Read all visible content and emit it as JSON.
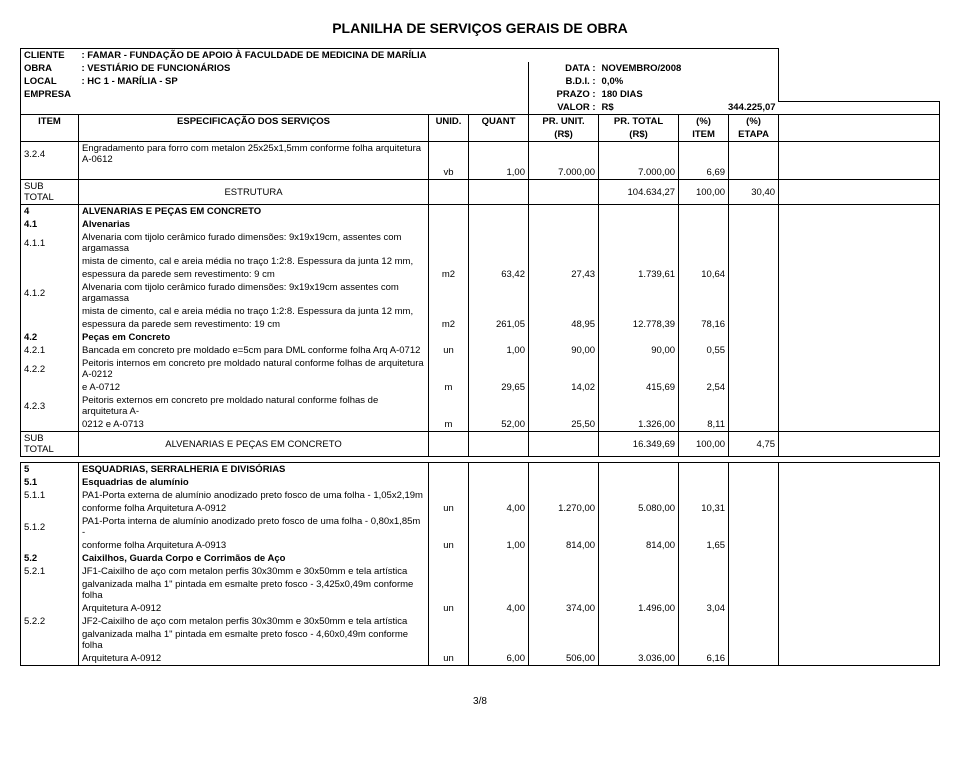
{
  "title": "PLANILHA DE SERVIÇOS GERAIS DE OBRA",
  "header": {
    "cliente_label": "CLIENTE",
    "cliente_val": ": FAMAR - FUNDAÇÃO DE APOIO À FACULDADE DE MEDICINA DE MARÍLIA",
    "obra_label": "OBRA",
    "obra_val": ": VESTIÁRIO DE FUNCIONÁRIOS",
    "data_label": "DATA :",
    "data_val": "NOVEMBRO/2008",
    "local_label": "LOCAL",
    "local_val": ": HC 1 - MARÍLIA - SP",
    "bdi_label": "B.D.I. :",
    "bdi_val": "0,0%",
    "empresa_label": "EMPRESA",
    "prazo_label": "PRAZO :",
    "prazo_val": "180 DIAS",
    "valor_label": "VALOR :",
    "valor_cur": "R$",
    "valor_val": "344.225,07"
  },
  "cols": {
    "item": "ITEM",
    "spec": "ESPECIFICAÇÃO DOS SERVIÇOS",
    "unid": "UNID.",
    "quant": "QUANT",
    "prunit": "PR. UNIT.",
    "prtot": "PR. TOTAL",
    "pct": "(%)",
    "rs": "(R$)",
    "itemcol": "ITEM",
    "etapa": "ETAPA"
  },
  "rows": [
    {
      "item": "3.2.4",
      "spec": "Engradamento para forro com metalon 25x25x1,5mm conforme folha arquitetura A-0612"
    },
    {
      "spec": "",
      "unid": "vb",
      "quant": "1,00",
      "prunit": "7.000,00",
      "prtot": "7.000,00",
      "pct1": "6,69"
    },
    {
      "sub": true,
      "item": "SUB TOTAL",
      "spec": "ESTRUTURA",
      "prtot": "104.634,27",
      "pct1": "100,00",
      "pct2": "30,40"
    },
    {
      "item": "4",
      "bold": true,
      "spec": "ALVENARIAS E PEÇAS EM CONCRETO"
    },
    {
      "item": "4.1",
      "bold": true,
      "spec": "Alvenarias"
    },
    {
      "item": "4.1.1",
      "spec": "Alvenaria com tijolo cerâmico furado dimensões: 9x19x19cm, assentes com argamassa"
    },
    {
      "spec": "mista de cimento, cal e areia média no traço 1:2:8. Espessura da junta 12 mm,"
    },
    {
      "spec": "espessura da parede sem revestimento: 9 cm",
      "unid": "m2",
      "quant": "63,42",
      "prunit": "27,43",
      "prtot": "1.739,61",
      "pct1": "10,64"
    },
    {
      "item": "4.1.2",
      "spec": "Alvenaria com tijolo cerâmico furado dimensões: 9x19x19cm assentes com argamassa"
    },
    {
      "spec": "mista de cimento, cal e areia média no traço 1:2:8. Espessura da junta 12 mm,"
    },
    {
      "spec": "espessura da parede sem revestimento: 19 cm",
      "unid": "m2",
      "quant": "261,05",
      "prunit": "48,95",
      "prtot": "12.778,39",
      "pct1": "78,16"
    },
    {
      "item": "4.2",
      "bold": true,
      "spec": "Peças em Concreto"
    },
    {
      "item": "4.2.1",
      "spec": "Bancada em concreto pre moldado e=5cm para DML conforme folha Arq A-0712",
      "unid": "un",
      "quant": "1,00",
      "prunit": "90,00",
      "prtot": "90,00",
      "pct1": "0,55"
    },
    {
      "item": "4.2.2",
      "spec": "Peitoris internos em concreto pre moldado natural conforme folhas de arquitetura A-0212"
    },
    {
      "spec": "e A-0712",
      "unid": "m",
      "quant": "29,65",
      "prunit": "14,02",
      "prtot": "415,69",
      "pct1": "2,54"
    },
    {
      "item": "4.2.3",
      "spec": "Peitoris externos em concreto pre moldado natural conforme folhas de arquitetura A-"
    },
    {
      "spec": "0212 e A-0713",
      "unid": "m",
      "quant": "52,00",
      "prunit": "25,50",
      "prtot": "1.326,00",
      "pct1": "8,11"
    },
    {
      "sub": true,
      "item": "SUB TOTAL",
      "spec": "ALVENARIAS E PEÇAS EM CONCRETO",
      "prtot": "16.349,69",
      "pct1": "100,00",
      "pct2": "4,75"
    },
    {
      "gap": true
    },
    {
      "item": "5",
      "bold": true,
      "spec": "ESQUADRIAS, SERRALHERIA E DIVISÓRIAS"
    },
    {
      "item": "5.1",
      "bold": true,
      "spec": "Esquadrias de alumínio"
    },
    {
      "item": "5.1.1",
      "spec": "PA1-Porta externa de alumínio anodizado preto fosco de uma folha - 1,05x2,19m"
    },
    {
      "spec": "conforme folha Arquitetura A-0912",
      "unid": "un",
      "quant": "4,00",
      "prunit": "1.270,00",
      "prtot": "5.080,00",
      "pct1": "10,31"
    },
    {
      "item": "5.1.2",
      "spec": "PA1-Porta interna de alumínio anodizado preto fosco de uma folha - 0,80x1,85m -"
    },
    {
      "spec": "conforme folha Arquitetura A-0913",
      "unid": "un",
      "quant": "1,00",
      "prunit": "814,00",
      "prtot": "814,00",
      "pct1": "1,65"
    },
    {
      "item": "5.2",
      "bold": true,
      "spec": "Caixilhos, Guarda Corpo e Corrimãos de Aço"
    },
    {
      "item": "5.2.1",
      "spec": "JF1-Caixilho de aço com metalon perfis 30x30mm e 30x50mm e tela artística"
    },
    {
      "spec": "galvanizada malha 1\" pintada em esmalte preto fosco - 3,425x0,49m conforme folha"
    },
    {
      "spec": "Arquitetura A-0912",
      "unid": "un",
      "quant": "4,00",
      "prunit": "374,00",
      "prtot": "1.496,00",
      "pct1": "3,04"
    },
    {
      "item": "5.2.2",
      "spec": "JF2-Caixilho de aço com metalon perfis 30x30mm e 30x50mm e tela artística"
    },
    {
      "spec": "galvanizada malha 1\" pintada em esmalte preto fosco - 4,60x0,49m conforme folha"
    },
    {
      "spec": "Arquitetura A-0912",
      "unid": "un",
      "quant": "6,00",
      "prunit": "506,00",
      "prtot": "3.036,00",
      "pct1": "6,16"
    }
  ],
  "pagenum": "3/8"
}
